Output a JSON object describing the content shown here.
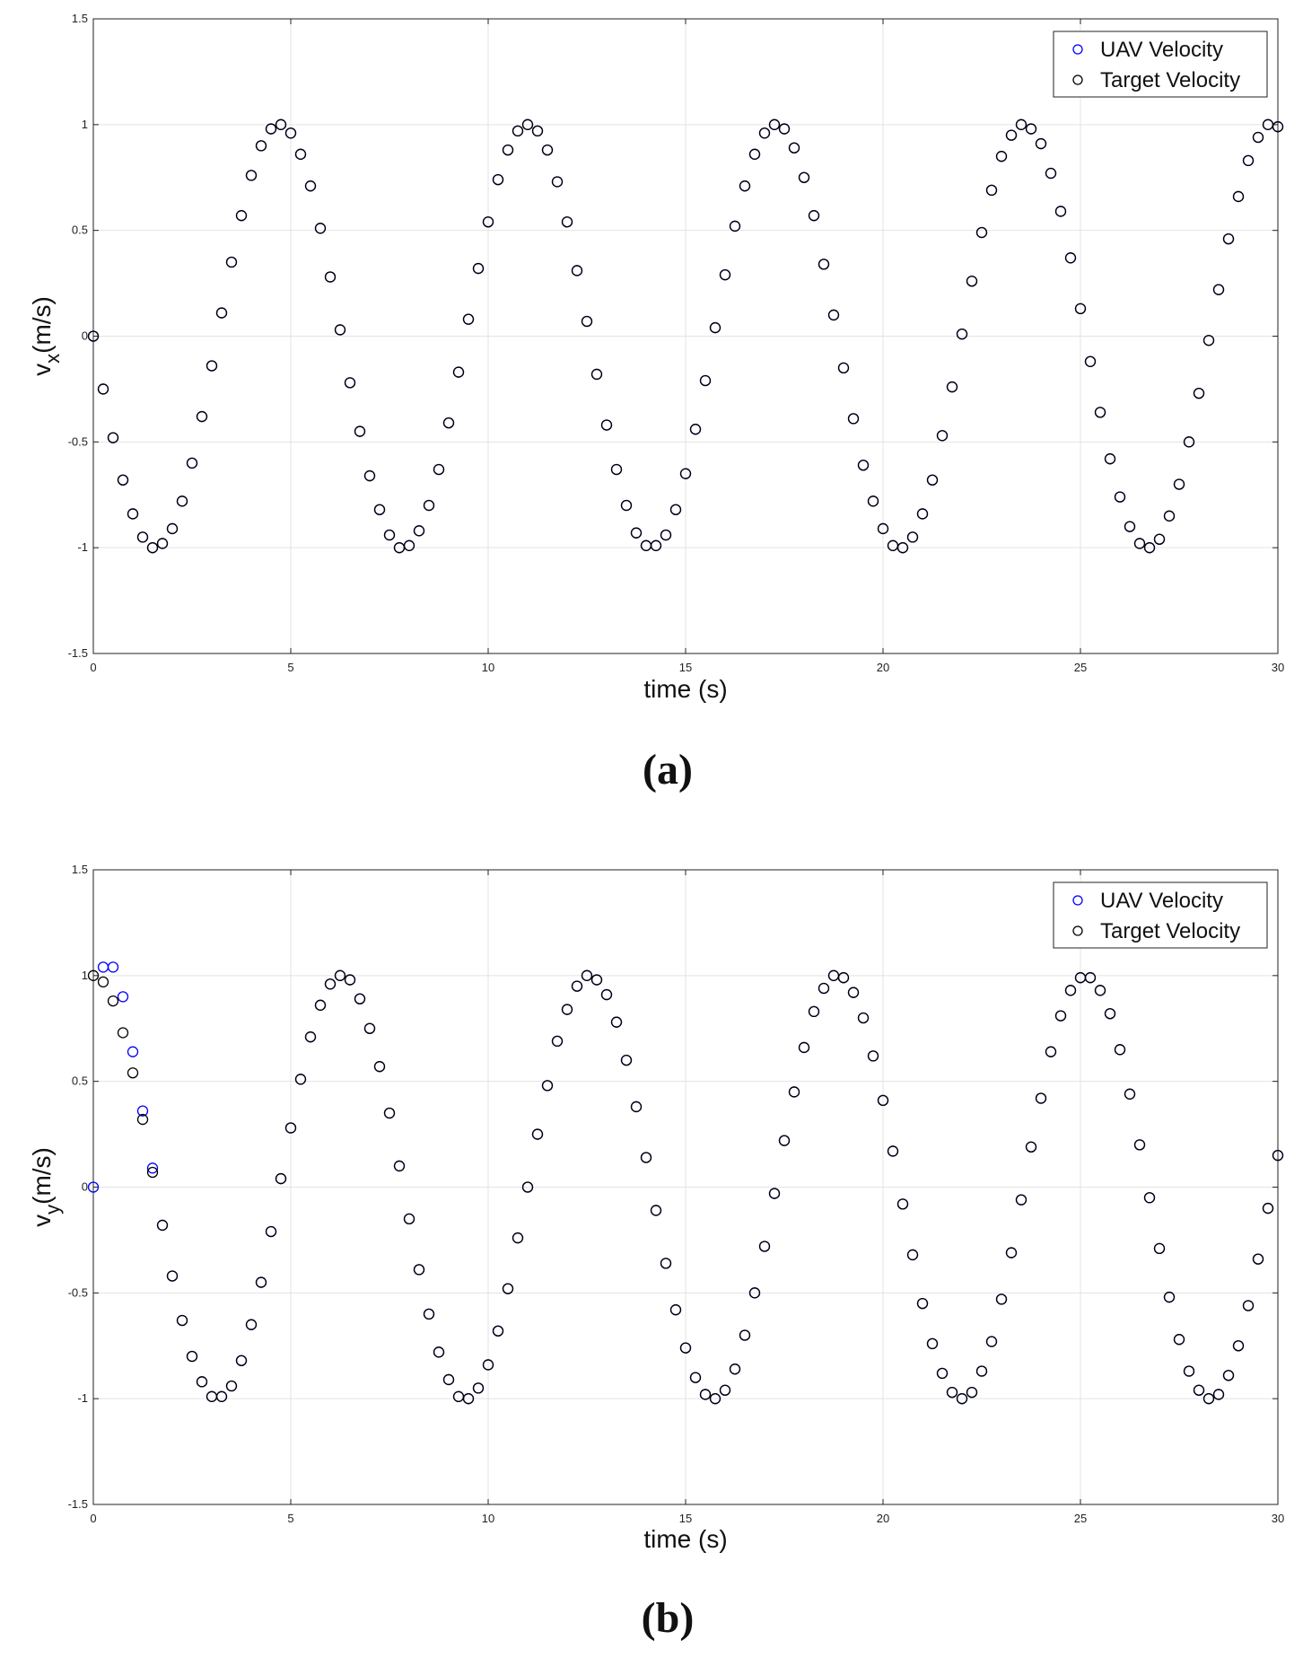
{
  "chart_data": [
    {
      "type": "scatter",
      "caption": "(a)",
      "xlabel": "time (s)",
      "ylabel": {
        "base": "v",
        "sub": "x",
        "unit": "(m/s)"
      },
      "xlim": [
        0,
        30
      ],
      "ylim": [
        -1.5,
        1.5
      ],
      "xticks": [
        0,
        5,
        10,
        15,
        20,
        25,
        30
      ],
      "yticks": [
        -1.5,
        -1,
        -0.5,
        0,
        0.5,
        1,
        1.5
      ],
      "grid": true,
      "legend": "upper-right",
      "x": [
        0,
        0.25,
        0.5,
        0.75,
        1,
        1.25,
        1.5,
        1.75,
        2,
        2.25,
        2.5,
        2.75,
        3,
        3.25,
        3.5,
        3.75,
        4,
        4.25,
        4.5,
        4.75,
        5,
        5.25,
        5.5,
        5.75,
        6,
        6.25,
        6.5,
        6.75,
        7,
        7.25,
        7.5,
        7.75,
        8,
        8.25,
        8.5,
        8.75,
        9,
        9.25,
        9.5,
        9.75,
        10,
        10.25,
        10.5,
        10.75,
        11,
        11.25,
        11.5,
        11.75,
        12,
        12.25,
        12.5,
        12.75,
        13,
        13.25,
        13.5,
        13.75,
        14,
        14.25,
        14.5,
        14.75,
        15,
        15.25,
        15.5,
        15.75,
        16,
        16.25,
        16.5,
        16.75,
        17,
        17.25,
        17.5,
        17.75,
        18,
        18.25,
        18.5,
        18.75,
        19,
        19.25,
        19.5,
        19.75,
        20,
        20.25,
        20.5,
        20.75,
        21,
        21.25,
        21.5,
        21.75,
        22,
        22.25,
        22.5,
        22.75,
        23,
        23.25,
        23.5,
        23.75,
        24,
        24.25,
        24.5,
        24.75,
        25,
        25.25,
        25.5,
        25.75,
        26,
        26.25,
        26.5,
        26.75,
        27,
        27.25,
        27.5,
        27.75,
        28,
        28.25,
        28.5,
        28.75,
        29,
        29.25,
        29.5,
        29.75,
        30
      ],
      "series": [
        {
          "name": "UAV Velocity",
          "color": "#0000ff",
          "values": [
            0,
            -0.25,
            -0.48,
            -0.68,
            -0.84,
            -0.95,
            -1,
            -0.98,
            -0.91,
            -0.78,
            -0.6,
            -0.38,
            -0.14,
            0.11,
            0.35,
            0.57,
            0.76,
            0.9,
            0.98,
            1,
            0.96,
            0.86,
            0.71,
            0.51,
            0.28,
            0.03,
            -0.22,
            -0.45,
            -0.66,
            -0.82,
            -0.94,
            -1,
            -0.99,
            -0.92,
            -0.8,
            -0.63,
            -0.41,
            -0.17,
            0.08,
            0.32,
            0.54,
            0.74,
            0.88,
            0.97,
            1,
            0.97,
            0.88,
            0.73,
            0.54,
            0.31,
            0.07,
            -0.18,
            -0.42,
            -0.63,
            -0.8,
            -0.93,
            -0.99,
            -0.99,
            -0.94,
            -0.82,
            -0.65,
            -0.44,
            -0.21,
            0.04,
            0.29,
            0.52,
            0.71,
            0.86,
            0.96,
            1,
            0.98,
            0.89,
            0.75,
            0.57,
            0.34,
            0.1,
            -0.15,
            -0.39,
            -0.61,
            -0.78,
            -0.91,
            -0.99,
            -1,
            -0.95,
            -0.84,
            -0.68,
            -0.47,
            -0.24,
            0.01,
            0.26,
            0.49,
            0.69,
            0.85,
            0.95,
            1,
            0.98,
            0.91,
            0.77,
            0.59,
            0.37,
            0.13,
            -0.12,
            -0.36,
            -0.58,
            -0.76,
            -0.9,
            -0.98,
            -1,
            -0.96,
            -0.85,
            -0.7,
            -0.5,
            -0.27,
            -0.02,
            0.22,
            0.46,
            0.66,
            0.83,
            0.94,
            1,
            0.99
          ]
        },
        {
          "name": "Target Velocity",
          "color": "#000000",
          "values": [
            0,
            -0.25,
            -0.48,
            -0.68,
            -0.84,
            -0.95,
            -1,
            -0.98,
            -0.91,
            -0.78,
            -0.6,
            -0.38,
            -0.14,
            0.11,
            0.35,
            0.57,
            0.76,
            0.9,
            0.98,
            1,
            0.96,
            0.86,
            0.71,
            0.51,
            0.28,
            0.03,
            -0.22,
            -0.45,
            -0.66,
            -0.82,
            -0.94,
            -1,
            -0.99,
            -0.92,
            -0.8,
            -0.63,
            -0.41,
            -0.17,
            0.08,
            0.32,
            0.54,
            0.74,
            0.88,
            0.97,
            1,
            0.97,
            0.88,
            0.73,
            0.54,
            0.31,
            0.07,
            -0.18,
            -0.42,
            -0.63,
            -0.8,
            -0.93,
            -0.99,
            -0.99,
            -0.94,
            -0.82,
            -0.65,
            -0.44,
            -0.21,
            0.04,
            0.29,
            0.52,
            0.71,
            0.86,
            0.96,
            1,
            0.98,
            0.89,
            0.75,
            0.57,
            0.34,
            0.1,
            -0.15,
            -0.39,
            -0.61,
            -0.78,
            -0.91,
            -0.99,
            -1,
            -0.95,
            -0.84,
            -0.68,
            -0.47,
            -0.24,
            0.01,
            0.26,
            0.49,
            0.69,
            0.85,
            0.95,
            1,
            0.98,
            0.91,
            0.77,
            0.59,
            0.37,
            0.13,
            -0.12,
            -0.36,
            -0.58,
            -0.76,
            -0.9,
            -0.98,
            -1,
            -0.96,
            -0.85,
            -0.7,
            -0.5,
            -0.27,
            -0.02,
            0.22,
            0.46,
            0.66,
            0.83,
            0.94,
            1,
            0.99
          ]
        }
      ]
    },
    {
      "type": "scatter",
      "caption": "(b)",
      "xlabel": "time (s)",
      "ylabel": {
        "base": "v",
        "sub": "y",
        "unit": "(m/s)"
      },
      "xlim": [
        0,
        30
      ],
      "ylim": [
        -1.5,
        1.5
      ],
      "xticks": [
        0,
        5,
        10,
        15,
        20,
        25,
        30
      ],
      "yticks": [
        -1.5,
        -1,
        -0.5,
        0,
        0.5,
        1,
        1.5
      ],
      "grid": true,
      "legend": "upper-right",
      "x": [
        0,
        0.25,
        0.5,
        0.75,
        1,
        1.25,
        1.5,
        1.75,
        2,
        2.25,
        2.5,
        2.75,
        3,
        3.25,
        3.5,
        3.75,
        4,
        4.25,
        4.5,
        4.75,
        5,
        5.25,
        5.5,
        5.75,
        6,
        6.25,
        6.5,
        6.75,
        7,
        7.25,
        7.5,
        7.75,
        8,
        8.25,
        8.5,
        8.75,
        9,
        9.25,
        9.5,
        9.75,
        10,
        10.25,
        10.5,
        10.75,
        11,
        11.25,
        11.5,
        11.75,
        12,
        12.25,
        12.5,
        12.75,
        13,
        13.25,
        13.5,
        13.75,
        14,
        14.25,
        14.5,
        14.75,
        15,
        15.25,
        15.5,
        15.75,
        16,
        16.25,
        16.5,
        16.75,
        17,
        17.25,
        17.5,
        17.75,
        18,
        18.25,
        18.5,
        18.75,
        19,
        19.25,
        19.5,
        19.75,
        20,
        20.25,
        20.5,
        20.75,
        21,
        21.25,
        21.5,
        21.75,
        22,
        22.25,
        22.5,
        22.75,
        23,
        23.25,
        23.5,
        23.75,
        24,
        24.25,
        24.5,
        24.75,
        25,
        25.25,
        25.5,
        25.75,
        26,
        26.25,
        26.5,
        26.75,
        27,
        27.25,
        27.5,
        27.75,
        28,
        28.25,
        28.5,
        28.75,
        29,
        29.25,
        29.5,
        29.75,
        30
      ],
      "series": [
        {
          "name": "UAV Velocity",
          "color": "#0000ff",
          "values": [
            0,
            1.04,
            1.04,
            0.9,
            0.64,
            0.36,
            0.09,
            -0.18,
            -0.42,
            -0.63,
            -0.8,
            -0.92,
            -0.99,
            -0.99,
            -0.94,
            -0.82,
            -0.65,
            -0.45,
            -0.21,
            0.04,
            0.28,
            0.51,
            0.71,
            0.86,
            0.96,
            1,
            0.98,
            0.89,
            0.75,
            0.57,
            0.35,
            0.1,
            -0.15,
            -0.39,
            -0.6,
            -0.78,
            -0.91,
            -0.99,
            -1,
            -0.95,
            -0.84,
            -0.68,
            -0.48,
            -0.24,
            0,
            0.25,
            0.48,
            0.69,
            0.84,
            0.95,
            1,
            0.98,
            0.91,
            0.78,
            0.6,
            0.38,
            0.14,
            -0.11,
            -0.36,
            -0.58,
            -0.76,
            -0.9,
            -0.98,
            -1,
            -0.96,
            -0.86,
            -0.7,
            -0.5,
            -0.28,
            -0.03,
            0.22,
            0.45,
            0.66,
            0.83,
            0.94,
            1,
            0.99,
            0.92,
            0.8,
            0.62,
            0.41,
            0.17,
            -0.08,
            -0.32,
            -0.55,
            -0.74,
            -0.88,
            -0.97,
            -1,
            -0.97,
            -0.87,
            -0.73,
            -0.53,
            -0.31,
            -0.06,
            0.19,
            0.42,
            0.64,
            0.81,
            0.93,
            0.99,
            0.99,
            0.93,
            0.82,
            0.65,
            0.44,
            0.2,
            -0.05,
            -0.29,
            -0.52,
            -0.72,
            -0.87,
            -0.96,
            -1,
            -0.98,
            -0.89,
            -0.75,
            -0.56,
            -0.34,
            -0.1,
            0.15
          ]
        },
        {
          "name": "Target Velocity",
          "color": "#000000",
          "values": [
            1,
            0.97,
            0.88,
            0.73,
            0.54,
            0.32,
            0.07,
            -0.18,
            -0.42,
            -0.63,
            -0.8,
            -0.92,
            -0.99,
            -0.99,
            -0.94,
            -0.82,
            -0.65,
            -0.45,
            -0.21,
            0.04,
            0.28,
            0.51,
            0.71,
            0.86,
            0.96,
            1,
            0.98,
            0.89,
            0.75,
            0.57,
            0.35,
            0.1,
            -0.15,
            -0.39,
            -0.6,
            -0.78,
            -0.91,
            -0.99,
            -1,
            -0.95,
            -0.84,
            -0.68,
            -0.48,
            -0.24,
            0,
            0.25,
            0.48,
            0.69,
            0.84,
            0.95,
            1,
            0.98,
            0.91,
            0.78,
            0.6,
            0.38,
            0.14,
            -0.11,
            -0.36,
            -0.58,
            -0.76,
            -0.9,
            -0.98,
            -1,
            -0.96,
            -0.86,
            -0.7,
            -0.5,
            -0.28,
            -0.03,
            0.22,
            0.45,
            0.66,
            0.83,
            0.94,
            1,
            0.99,
            0.92,
            0.8,
            0.62,
            0.41,
            0.17,
            -0.08,
            -0.32,
            -0.55,
            -0.74,
            -0.88,
            -0.97,
            -1,
            -0.97,
            -0.87,
            -0.73,
            -0.53,
            -0.31,
            -0.06,
            0.19,
            0.42,
            0.64,
            0.81,
            0.93,
            0.99,
            0.99,
            0.93,
            0.82,
            0.65,
            0.44,
            0.2,
            -0.05,
            -0.29,
            -0.52,
            -0.72,
            -0.87,
            -0.96,
            -1,
            -0.98,
            -0.89,
            -0.75,
            -0.56,
            -0.34,
            -0.1,
            0.15
          ]
        }
      ]
    }
  ]
}
